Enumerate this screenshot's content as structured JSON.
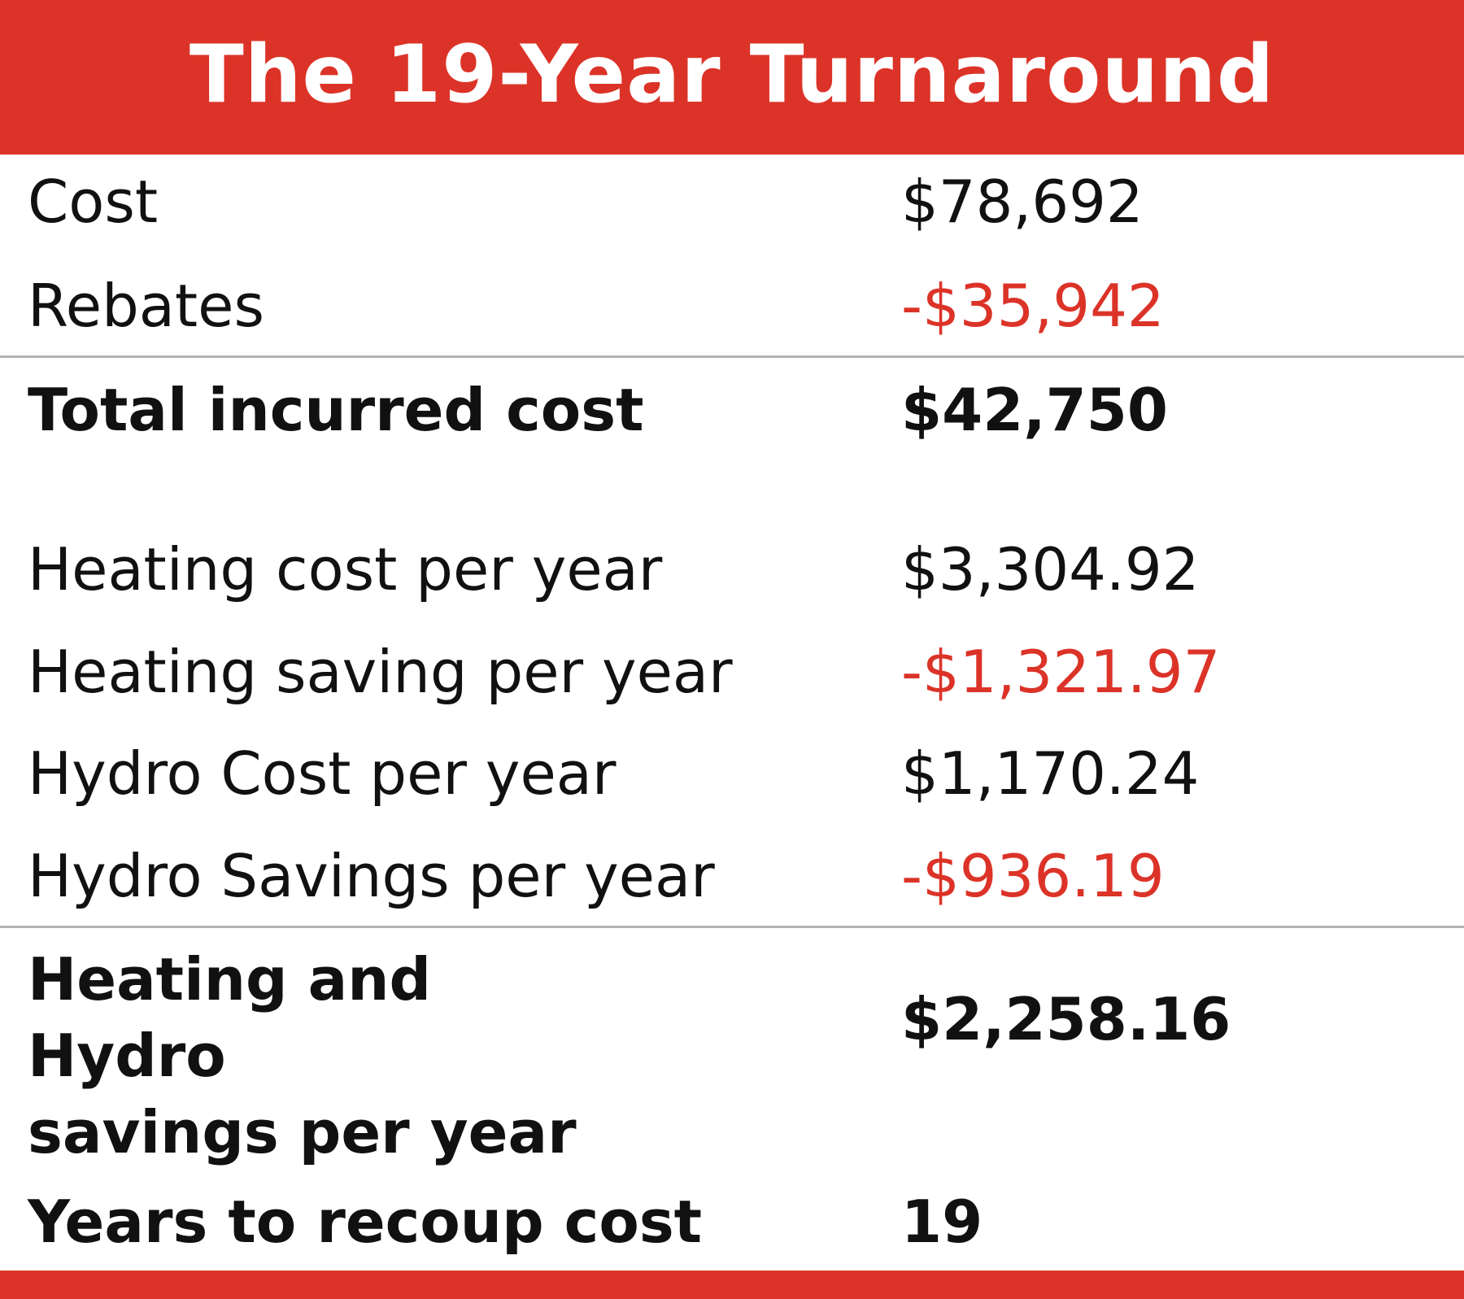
{
  "title": "The 19-Year Turnaround",
  "rows": {
    "cost": {
      "label": "Cost",
      "value": "$78,692"
    },
    "rebates": {
      "label": "Rebates",
      "value": "-$35,942"
    },
    "total_incurred": {
      "label": "Total incurred cost",
      "value": "$42,750"
    },
    "heating_cost": {
      "label": "Heating cost per year",
      "value": "$3,304.92"
    },
    "heating_saving": {
      "label": "Heating saving per year",
      "value": "-$1,321.97"
    },
    "hydro_cost": {
      "label": "Hydro Cost per year",
      "value": "$1,170.24"
    },
    "hydro_savings": {
      "label": "Hydro Savings per year",
      "value": "-$936.19"
    },
    "combined_savings": {
      "label_line1": "Heating and Hydro",
      "label_line2": "savings per year",
      "value": "$2,258.16"
    },
    "years_to_recoup": {
      "label": "Years to recoup cost",
      "value": "19"
    }
  },
  "colors": {
    "accent": "#dc3328",
    "negative": "#dc3328",
    "divider": "#b3b3b3",
    "text": "#111111"
  }
}
